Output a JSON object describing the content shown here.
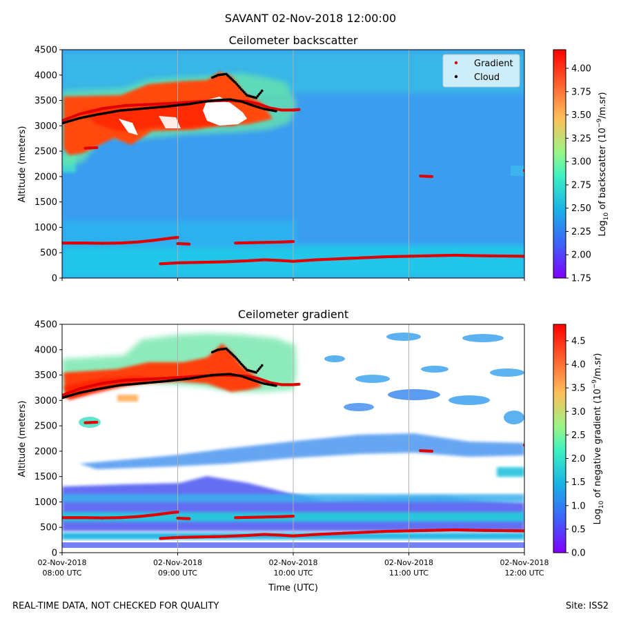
{
  "suptitle": "SAVANT 02-Nov-2018 12:00:00",
  "footer_left": "REAL-TIME DATA, NOT CHECKED FOR QUALITY",
  "footer_right": "Site: ISS2",
  "chart_data": [
    {
      "type": "heatmap",
      "title": "Ceilometer backscatter",
      "ylabel": "Altitude (meters)",
      "ylim": [
        0,
        4500
      ],
      "yticks": [
        "0",
        "500",
        "1000",
        "1500",
        "2000",
        "2500",
        "3000",
        "3500",
        "4000",
        "4500"
      ],
      "xlim_hours": [
        8,
        12
      ],
      "colorbar": {
        "label_base": "Log",
        "label_sub": "10",
        "label_mid": " of backscatter (10",
        "label_sup": "−9",
        "label_end": "/m.sr)",
        "range": [
          1.75,
          4.2
        ],
        "ticks": [
          "1.75",
          "2.00",
          "2.25",
          "2.50",
          "2.75",
          "3.00",
          "3.25",
          "3.50",
          "3.75",
          "4.00"
        ]
      },
      "legend": {
        "placement": "upper right",
        "entries": [
          {
            "name": "Gradient",
            "color": "#e00000"
          },
          {
            "name": "Cloud",
            "color": "#000000"
          }
        ]
      },
      "grid": "vertical lines at hourly ticks"
    },
    {
      "type": "heatmap",
      "title": "Ceilometer gradient",
      "ylabel": "Altitude (meters)",
      "xlabel": "Time (UTC)",
      "ylim": [
        0,
        4500
      ],
      "yticks": [
        "0",
        "500",
        "1000",
        "1500",
        "2000",
        "2500",
        "3000",
        "3500",
        "4000",
        "4500"
      ],
      "xticks": [
        {
          "date": "02-Nov-2018",
          "time": "08:00 UTC"
        },
        {
          "date": "02-Nov-2018",
          "time": "09:00 UTC"
        },
        {
          "date": "02-Nov-2018",
          "time": "10:00 UTC"
        },
        {
          "date": "02-Nov-2018",
          "time": "11:00 UTC"
        },
        {
          "date": "02-Nov-2018",
          "time": "12:00 UTC"
        }
      ],
      "xlim_hours": [
        8,
        12
      ],
      "colorbar": {
        "label_base": "Log",
        "label_sub": "10",
        "label_mid": " of negative gradient (10",
        "label_sup": "−9",
        "label_end": "/m.sr)",
        "range": [
          0,
          4.85
        ],
        "ticks": [
          "0.0",
          "0.5",
          "1.0",
          "1.5",
          "2.0",
          "2.5",
          "3.0",
          "3.5",
          "4.0",
          "4.5"
        ]
      },
      "grid": "vertical lines at hourly ticks"
    }
  ],
  "series": {
    "gradient_boundary_layer": [
      [
        8.0,
        690
      ],
      [
        8.2,
        690
      ],
      [
        8.35,
        685
      ],
      [
        8.5,
        690
      ],
      [
        8.65,
        710
      ],
      [
        8.8,
        745
      ],
      [
        8.95,
        790
      ],
      [
        9.0,
        800
      ]
    ],
    "gradient_mid_layer": [
      [
        9.0,
        680
      ],
      [
        9.1,
        670
      ]
    ],
    "gradient_mid_layer2": [
      [
        9.5,
        690
      ],
      [
        9.7,
        700
      ],
      [
        9.9,
        710
      ],
      [
        10.0,
        720
      ]
    ],
    "gradient_low_layer": [
      [
        8.85,
        280
      ],
      [
        9.0,
        300
      ],
      [
        9.2,
        310
      ],
      [
        9.4,
        320
      ],
      [
        9.6,
        340
      ],
      [
        9.75,
        360
      ],
      [
        9.9,
        345
      ],
      [
        10.0,
        330
      ],
      [
        10.2,
        360
      ],
      [
        10.4,
        380
      ],
      [
        10.6,
        400
      ],
      [
        10.8,
        420
      ],
      [
        11.0,
        430
      ],
      [
        11.2,
        440
      ],
      [
        11.4,
        450
      ],
      [
        11.6,
        440
      ],
      [
        11.8,
        435
      ],
      [
        12.0,
        430
      ]
    ],
    "gradient_cloud_top": [
      [
        8.0,
        3100
      ],
      [
        8.15,
        3230
      ],
      [
        8.35,
        3340
      ],
      [
        8.55,
        3400
      ],
      [
        8.75,
        3420
      ],
      [
        9.0,
        3450
      ],
      [
        9.2,
        3480
      ],
      [
        9.4,
        3500
      ],
      [
        9.6,
        3480
      ],
      [
        9.7,
        3430
      ],
      [
        9.8,
        3350
      ],
      [
        9.9,
        3310
      ],
      [
        10.0,
        3310
      ],
      [
        10.05,
        3320
      ]
    ],
    "gradient_isolated": [
      [
        8.2,
        2560
      ],
      [
        8.3,
        2570
      ],
      [
        11.1,
        2010
      ],
      [
        11.2,
        2000
      ],
      [
        12.0,
        2120
      ]
    ],
    "cloud_base": [
      [
        8.0,
        3050
      ],
      [
        8.15,
        3150
      ],
      [
        8.3,
        3220
      ],
      [
        8.5,
        3300
      ],
      [
        8.7,
        3340
      ],
      [
        8.9,
        3380
      ],
      [
        9.1,
        3430
      ],
      [
        9.3,
        3500
      ],
      [
        9.45,
        3520
      ],
      [
        9.55,
        3480
      ],
      [
        9.65,
        3400
      ],
      [
        9.75,
        3330
      ],
      [
        9.85,
        3290
      ]
    ],
    "cloud_upper": [
      [
        9.3,
        3950
      ],
      [
        9.35,
        4000
      ],
      [
        9.42,
        4020
      ],
      [
        9.5,
        3850
      ],
      [
        9.55,
        3720
      ],
      [
        9.6,
        3600
      ],
      [
        9.68,
        3550
      ],
      [
        9.73,
        3690
      ]
    ]
  }
}
